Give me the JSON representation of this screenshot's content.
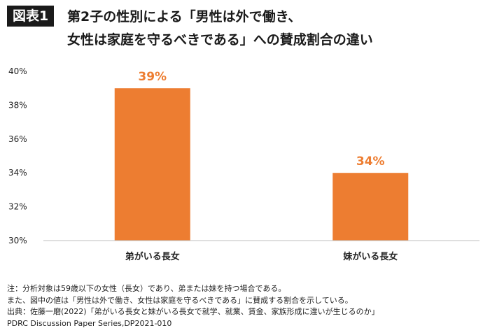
{
  "figure_label": "図表1",
  "title_lines": [
    "第2子の性別による「男性は外で働き、",
    "女性は家庭を守るべきである」への賛成割合の違い"
  ],
  "colors": {
    "bar": "#ed7d31",
    "label": "#ed7d31",
    "axis": "#bfbfbf",
    "text": "#222222"
  },
  "chart_data": {
    "type": "bar",
    "title": "第2子の性別による「男性は外で働き、女性は家庭を守るべきである」への賛成割合の違い",
    "categories": [
      "弟がいる長女",
      "妹がいる長女"
    ],
    "values": [
      39,
      34
    ],
    "value_labels": [
      "39%",
      "34%"
    ],
    "ylim": [
      30,
      40
    ],
    "yticks": [
      "30%",
      "32%",
      "34%",
      "36%",
      "38%",
      "40%"
    ],
    "ytick_values": [
      30,
      32,
      34,
      36,
      38,
      40
    ],
    "xlabel": "",
    "ylabel": "",
    "grid": false,
    "legend": "none"
  },
  "notes": [
    "注：分析対象は59歳以下の女性（長女）であり、弟または妹を持つ場合である。",
    "また、図中の値は「男性は外で働き、女性は家庭を守るべきである」に賛成する割合を示している。",
    "出典：佐藤一磨(2022)「弟がいる長女と妹がいる長女で就学、就業、賃金、家族形成に違いが生じるのか」",
    "PDRC  Discussion  Paper  Series,DP2021-010"
  ]
}
